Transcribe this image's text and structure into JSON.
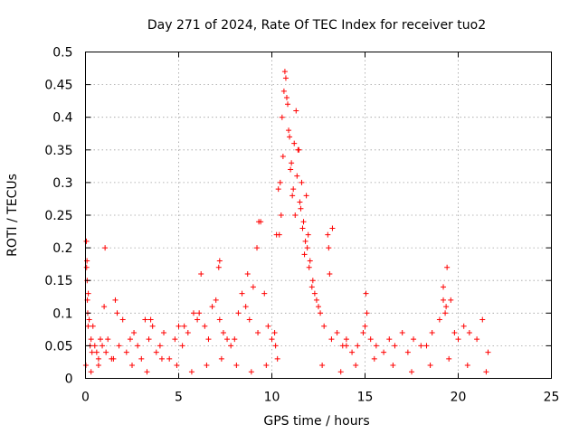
{
  "chart_data": {
    "type": "scatter",
    "title": "Day 271 of 2024, Rate Of TEC Index for receiver tuo2",
    "xlabel": "GPS time / hours",
    "ylabel": "ROTI / TECUs",
    "xlim": [
      0,
      25
    ],
    "ylim": [
      0,
      0.5
    ],
    "xticks": [
      0,
      5,
      10,
      15,
      20,
      25
    ],
    "xtick_labels": [
      "0",
      "5",
      "10",
      "15",
      "20",
      "25"
    ],
    "yticks": [
      0,
      0.05,
      0.1,
      0.15,
      0.2,
      0.25,
      0.3,
      0.35,
      0.4,
      0.45,
      0.5
    ],
    "ytick_labels": [
      "0",
      "0.05",
      "0.1",
      "0.15",
      "0.2",
      "0.25",
      "0.3",
      "0.35",
      "0.4",
      "0.45",
      "0.5"
    ],
    "grid": true,
    "marker": "+",
    "marker_color": "#ff0000",
    "series": [
      {
        "name": "ROTI",
        "x": [
          0.02,
          0.05,
          0.08,
          0.1,
          0.12,
          0.15,
          0.2,
          0.25,
          0.3,
          0.35,
          0.4,
          0.5,
          0.6,
          0.7,
          0.8,
          0.9,
          1.0,
          1.1,
          1.2,
          1.4,
          1.6,
          1.8,
          2.0,
          2.2,
          2.4,
          2.6,
          2.8,
          3.0,
          3.2,
          3.4,
          3.6,
          3.8,
          4.0,
          4.2,
          4.5,
          4.8,
          5.0,
          5.2,
          5.5,
          5.8,
          6.0,
          6.2,
          6.4,
          6.6,
          6.8,
          7.0,
          7.2,
          7.4,
          7.6,
          7.8,
          8.0,
          8.2,
          8.4,
          8.6,
          8.8,
          9.0,
          9.2,
          9.4,
          9.6,
          9.8,
          10.0,
          10.2,
          10.4,
          10.5,
          10.6,
          10.7,
          10.8,
          10.9,
          11.0,
          11.1,
          11.2,
          11.3,
          11.4,
          11.5,
          11.6,
          11.7,
          11.8,
          11.9,
          12.0,
          12.2,
          12.4,
          12.6,
          12.8,
          13.0,
          13.2,
          13.5,
          13.8,
          14.0,
          14.3,
          14.6,
          14.9,
          15.0,
          15.3,
          15.6,
          16.0,
          16.3,
          16.6,
          17.0,
          17.3,
          17.6,
          18.0,
          18.3,
          18.6,
          19.0,
          19.2,
          19.4,
          19.6,
          19.8,
          20.0,
          20.3,
          20.6,
          21.0,
          21.3,
          21.6,
          0.06,
          0.09,
          0.14,
          1.05,
          1.7,
          3.5,
          5.3,
          6.1,
          7.15,
          7.2,
          8.7,
          9.25,
          9.3,
          10.15,
          10.25,
          10.35,
          10.45,
          10.55,
          10.65,
          10.75,
          10.85,
          10.95,
          11.05,
          11.15,
          11.25,
          11.35,
          11.45,
          11.55,
          11.65,
          11.75,
          11.85,
          11.95,
          12.05,
          12.15,
          12.3,
          12.5,
          13.05,
          13.1,
          13.25,
          14.0,
          15.05,
          15.1,
          19.2,
          19.3,
          19.35,
          0.3,
          0.7,
          1.5,
          2.5,
          3.3,
          4.1,
          4.9,
          5.7,
          6.5,
          7.3,
          8.1,
          8.9,
          9.7,
          10.3,
          12.7,
          13.7,
          14.5,
          15.5,
          16.5,
          17.5,
          18.5,
          19.5,
          20.5,
          21.5
        ],
        "y": [
          0.02,
          0.21,
          0.18,
          0.12,
          0.1,
          0.13,
          0.09,
          0.05,
          0.06,
          0.04,
          0.08,
          0.05,
          0.04,
          0.03,
          0.06,
          0.05,
          0.11,
          0.04,
          0.06,
          0.03,
          0.12,
          0.05,
          0.09,
          0.04,
          0.06,
          0.07,
          0.05,
          0.03,
          0.09,
          0.06,
          0.08,
          0.04,
          0.05,
          0.07,
          0.03,
          0.06,
          0.08,
          0.05,
          0.07,
          0.1,
          0.09,
          0.16,
          0.08,
          0.06,
          0.11,
          0.12,
          0.18,
          0.07,
          0.06,
          0.05,
          0.06,
          0.1,
          0.13,
          0.11,
          0.09,
          0.14,
          0.2,
          0.24,
          0.13,
          0.08,
          0.06,
          0.05,
          0.22,
          0.25,
          0.34,
          0.47,
          0.43,
          0.38,
          0.32,
          0.28,
          0.36,
          0.41,
          0.35,
          0.27,
          0.3,
          0.24,
          0.21,
          0.2,
          0.17,
          0.15,
          0.12,
          0.1,
          0.08,
          0.22,
          0.06,
          0.07,
          0.05,
          0.06,
          0.04,
          0.05,
          0.07,
          0.08,
          0.06,
          0.05,
          0.04,
          0.06,
          0.05,
          0.07,
          0.04,
          0.06,
          0.05,
          0.05,
          0.07,
          0.09,
          0.14,
          0.17,
          0.12,
          0.07,
          0.06,
          0.08,
          0.07,
          0.06,
          0.09,
          0.04,
          0.17,
          0.15,
          0.08,
          0.2,
          0.1,
          0.09,
          0.08,
          0.1,
          0.17,
          0.09,
          0.16,
          0.07,
          0.24,
          0.07,
          0.22,
          0.29,
          0.3,
          0.4,
          0.44,
          0.46,
          0.42,
          0.37,
          0.33,
          0.29,
          0.25,
          0.31,
          0.35,
          0.26,
          0.23,
          0.19,
          0.28,
          0.22,
          0.18,
          0.14,
          0.13,
          0.11,
          0.2,
          0.16,
          0.23,
          0.05,
          0.13,
          0.1,
          0.12,
          0.1,
          0.11,
          0.01,
          0.02,
          0.03,
          0.02,
          0.01,
          0.03,
          0.02,
          0.01,
          0.02,
          0.03,
          0.02,
          0.01,
          0.02,
          0.03,
          0.02,
          0.01,
          0.02,
          0.03,
          0.02,
          0.01,
          0.02,
          0.03,
          0.02,
          0.01
        ]
      }
    ]
  }
}
